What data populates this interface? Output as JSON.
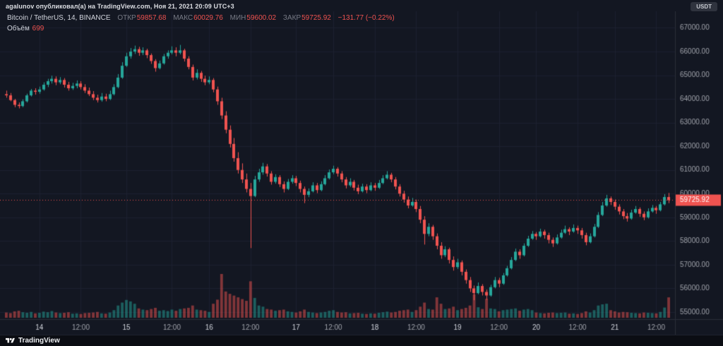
{
  "attribution": {
    "text": "agalunov опубликовал(а) на TradingView.com, Ноя 21, 2021 20:09 UTC+3",
    "quote_badge": "USDT"
  },
  "legend": {
    "symbol": "Bitcoin / TetherUS, 14, BINANCE",
    "o": {
      "label": "ОТКР",
      "value": "59857.68"
    },
    "h": {
      "label": "МАКС",
      "value": "60029.76"
    },
    "l": {
      "label": "МИН",
      "value": "59600.02"
    },
    "c": {
      "label": "ЗАКР",
      "value": "59725.92"
    },
    "change": "−131.77 (−0.22%)",
    "volume": {
      "label": "Объём",
      "value": "699"
    }
  },
  "footer": {
    "brand": "TradingView"
  },
  "chart_data": {
    "type": "candlestick+volume",
    "title": "Bitcoin / TetherUS",
    "exchange": "BINANCE",
    "interval": "14",
    "last_price": 59725.92,
    "last_price_label": "59725.92",
    "price_axis": {
      "min": 55000,
      "max": 67000,
      "step": 1000,
      "render_min": 54700,
      "render_max": 67700,
      "labels": [
        "55000.00",
        "56000.00",
        "57000.00",
        "58000.00",
        "59000.00",
        "60000.00",
        "61000.00",
        "62000.00",
        "63000.00",
        "64000.00",
        "65000.00",
        "66000.00",
        "67000.00"
      ]
    },
    "x_ticks": [
      {
        "i": 8,
        "label": "14",
        "major": true
      },
      {
        "i": 18,
        "label": "12:00",
        "major": false
      },
      {
        "i": 29,
        "label": "15",
        "major": true
      },
      {
        "i": 40,
        "label": "12:00",
        "major": false
      },
      {
        "i": 49,
        "label": "16",
        "major": true
      },
      {
        "i": 59,
        "label": "12:00",
        "major": false
      },
      {
        "i": 70,
        "label": "17",
        "major": true
      },
      {
        "i": 79,
        "label": "12:00",
        "major": false
      },
      {
        "i": 89,
        "label": "18",
        "major": true
      },
      {
        "i": 99,
        "label": "12:00",
        "major": false
      },
      {
        "i": 109,
        "label": "19",
        "major": true
      },
      {
        "i": 119,
        "label": "12:00",
        "major": false
      },
      {
        "i": 128,
        "label": "20",
        "major": true
      },
      {
        "i": 138,
        "label": "12:00",
        "major": false
      },
      {
        "i": 147,
        "label": "21",
        "major": true
      },
      {
        "i": 157,
        "label": "12:00",
        "major": false
      }
    ],
    "colors": {
      "bg": "#131722",
      "grid": "#1c2030",
      "up": "#26a69a",
      "down": "#ef5350",
      "vol_up": "rgba(38,166,154,0.5)",
      "vol_down": "rgba(239,83,80,0.5)",
      "axis_text": "#a0a3ab",
      "axis_text_major": "#d1d4dc",
      "axis_border": "#2a2e39",
      "last_price_text": "#ffffff"
    },
    "candles": [
      [
        64200,
        64350,
        64050,
        64150,
        180
      ],
      [
        64150,
        64250,
        63900,
        63950,
        160
      ],
      [
        63950,
        64000,
        63650,
        63750,
        220
      ],
      [
        63750,
        63850,
        63600,
        63700,
        240
      ],
      [
        63700,
        63980,
        63650,
        63900,
        190
      ],
      [
        63900,
        64220,
        63850,
        64150,
        170
      ],
      [
        64150,
        64420,
        64100,
        64350,
        200
      ],
      [
        64350,
        64450,
        64180,
        64300,
        150
      ],
      [
        64300,
        64520,
        64220,
        64400,
        170
      ],
      [
        64400,
        64700,
        64350,
        64600,
        210
      ],
      [
        64600,
        64850,
        64500,
        64750,
        190
      ],
      [
        64750,
        64980,
        64650,
        64850,
        230
      ],
      [
        64850,
        64950,
        64580,
        64700,
        180
      ],
      [
        64700,
        64920,
        64620,
        64800,
        160
      ],
      [
        64800,
        64880,
        64480,
        64600,
        170
      ],
      [
        64600,
        64720,
        64350,
        64450,
        190
      ],
      [
        64450,
        64680,
        64380,
        64550,
        140
      ],
      [
        64550,
        64780,
        64450,
        64650,
        150
      ],
      [
        64650,
        64750,
        64400,
        64500,
        130
      ],
      [
        64500,
        64620,
        64250,
        64350,
        160
      ],
      [
        64350,
        64480,
        64120,
        64200,
        170
      ],
      [
        64200,
        64330,
        63950,
        64050,
        180
      ],
      [
        64050,
        64180,
        63850,
        63950,
        200
      ],
      [
        63950,
        64250,
        63880,
        64100,
        150
      ],
      [
        64100,
        64220,
        63900,
        64000,
        140
      ],
      [
        64000,
        64350,
        63950,
        64200,
        180
      ],
      [
        64200,
        64620,
        64150,
        64500,
        260
      ],
      [
        64500,
        65050,
        64450,
        64900,
        420
      ],
      [
        64900,
        65550,
        64850,
        65400,
        520
      ],
      [
        65400,
        65950,
        65350,
        65800,
        610
      ],
      [
        65800,
        66150,
        65700,
        66000,
        560
      ],
      [
        66000,
        66250,
        65900,
        66100,
        480
      ],
      [
        66100,
        66200,
        65820,
        65950,
        320
      ],
      [
        65950,
        66180,
        65850,
        66050,
        280
      ],
      [
        66050,
        66120,
        65720,
        65850,
        260
      ],
      [
        65850,
        65920,
        65480,
        65600,
        300
      ],
      [
        65600,
        65680,
        65150,
        65300,
        340
      ],
      [
        65300,
        65620,
        65250,
        65500,
        240
      ],
      [
        65500,
        65900,
        65450,
        65800,
        260
      ],
      [
        65800,
        66050,
        65700,
        65950,
        230
      ],
      [
        65950,
        66220,
        65880,
        66050,
        280
      ],
      [
        66050,
        66180,
        65800,
        65950,
        240
      ],
      [
        65950,
        66280,
        65880,
        66050,
        300
      ],
      [
        66050,
        66120,
        65580,
        65700,
        320
      ],
      [
        65700,
        65800,
        65250,
        65350,
        340
      ],
      [
        65350,
        65450,
        64780,
        64900,
        420
      ],
      [
        64900,
        65250,
        64820,
        65100,
        280
      ],
      [
        65100,
        65180,
        64720,
        64850,
        260
      ],
      [
        64850,
        64980,
        64580,
        64700,
        240
      ],
      [
        64700,
        64950,
        64620,
        64800,
        200
      ],
      [
        64800,
        64880,
        64280,
        64400,
        480
      ],
      [
        64400,
        64520,
        63750,
        63900,
        620
      ],
      [
        63900,
        64050,
        63150,
        63300,
        1500
      ],
      [
        63300,
        63480,
        62550,
        62700,
        900
      ],
      [
        62700,
        62880,
        61950,
        62100,
        820
      ],
      [
        62100,
        62350,
        61350,
        61500,
        760
      ],
      [
        61500,
        61750,
        60850,
        61000,
        700
      ],
      [
        61000,
        61280,
        60450,
        60600,
        640
      ],
      [
        60600,
        60850,
        60050,
        60200,
        580
      ],
      [
        60200,
        60450,
        57700,
        59900,
        1250
      ],
      [
        59900,
        60750,
        59850,
        60600,
        680
      ],
      [
        60600,
        61050,
        60500,
        60900,
        420
      ],
      [
        60900,
        61300,
        60800,
        61150,
        380
      ],
      [
        61150,
        61250,
        60720,
        60850,
        300
      ],
      [
        60850,
        60950,
        60380,
        60500,
        280
      ],
      [
        60500,
        60820,
        60420,
        60700,
        240
      ],
      [
        60700,
        60780,
        60280,
        60400,
        260
      ],
      [
        60400,
        60520,
        60050,
        60200,
        280
      ],
      [
        60200,
        60620,
        60150,
        60500,
        220
      ],
      [
        60500,
        60780,
        60420,
        60650,
        200
      ],
      [
        60650,
        60750,
        60320,
        60450,
        180
      ],
      [
        60450,
        60550,
        60050,
        60200,
        220
      ],
      [
        60200,
        60300,
        59600,
        59950,
        280
      ],
      [
        59950,
        60220,
        59850,
        60100,
        200
      ],
      [
        60100,
        60480,
        60050,
        60350,
        180
      ],
      [
        60350,
        60450,
        60020,
        60150,
        160
      ],
      [
        60150,
        60520,
        60100,
        60400,
        180
      ],
      [
        60400,
        60780,
        60350,
        60650,
        200
      ],
      [
        60650,
        61020,
        60600,
        60900,
        240
      ],
      [
        60900,
        61180,
        60820,
        61050,
        260
      ],
      [
        61050,
        61120,
        60720,
        60850,
        200
      ],
      [
        60850,
        60950,
        60480,
        60600,
        180
      ],
      [
        60600,
        60700,
        60220,
        60350,
        190
      ],
      [
        60350,
        60650,
        60280,
        60500,
        150
      ],
      [
        60500,
        60580,
        60130,
        60250,
        160
      ],
      [
        60250,
        60380,
        59980,
        60100,
        170
      ],
      [
        60100,
        60420,
        60050,
        60300,
        140
      ],
      [
        60300,
        60400,
        60020,
        60150,
        130
      ],
      [
        60150,
        60480,
        60100,
        60350,
        150
      ],
      [
        60350,
        60450,
        60120,
        60250,
        140
      ],
      [
        60250,
        60580,
        60200,
        60450,
        170
      ],
      [
        60450,
        60780,
        60400,
        60650,
        190
      ],
      [
        60650,
        60950,
        60600,
        60800,
        210
      ],
      [
        60800,
        60880,
        60480,
        60600,
        180
      ],
      [
        60600,
        60700,
        60180,
        60300,
        200
      ],
      [
        60300,
        60400,
        59880,
        60000,
        240
      ],
      [
        60000,
        60120,
        59620,
        59750,
        260
      ],
      [
        59750,
        59880,
        59380,
        59500,
        280
      ],
      [
        59500,
        59820,
        59450,
        59650,
        200
      ],
      [
        59650,
        59750,
        59220,
        59350,
        260
      ],
      [
        59350,
        59480,
        58750,
        58900,
        380
      ],
      [
        58900,
        59050,
        57850,
        58300,
        520
      ],
      [
        58300,
        58750,
        58200,
        58600,
        300
      ],
      [
        58600,
        58680,
        58050,
        58200,
        280
      ],
      [
        58200,
        58320,
        57650,
        57800,
        700
      ],
      [
        57800,
        57950,
        57250,
        57400,
        480
      ],
      [
        57400,
        57780,
        57320,
        57650,
        300
      ],
      [
        57650,
        57720,
        57050,
        57200,
        320
      ],
      [
        57200,
        57350,
        56750,
        56900,
        380
      ],
      [
        56900,
        57250,
        56820,
        57100,
        260
      ],
      [
        57100,
        57180,
        56550,
        56700,
        300
      ],
      [
        56700,
        56800,
        56200,
        56350,
        340
      ],
      [
        56350,
        56480,
        55850,
        56000,
        420
      ],
      [
        56000,
        56120,
        55500,
        55800,
        800
      ],
      [
        55800,
        56250,
        55750,
        56100,
        360
      ],
      [
        56100,
        56180,
        55700,
        55850,
        300
      ],
      [
        55850,
        55950,
        55520,
        55700,
        650
      ],
      [
        55700,
        56150,
        55650,
        56050,
        320
      ],
      [
        56050,
        56480,
        56000,
        56350,
        300
      ],
      [
        56350,
        56450,
        56050,
        56200,
        220
      ],
      [
        56200,
        56650,
        56150,
        56550,
        260
      ],
      [
        56550,
        56950,
        56500,
        56850,
        280
      ],
      [
        56850,
        57320,
        56800,
        57200,
        300
      ],
      [
        57200,
        57680,
        57150,
        57550,
        320
      ],
      [
        57550,
        57650,
        57250,
        57400,
        240
      ],
      [
        57400,
        57900,
        57350,
        57800,
        280
      ],
      [
        57800,
        58220,
        57750,
        58100,
        300
      ],
      [
        58100,
        58420,
        58050,
        58300,
        260
      ],
      [
        58300,
        58380,
        58050,
        58200,
        180
      ],
      [
        58200,
        58520,
        58150,
        58400,
        160
      ],
      [
        58400,
        58480,
        58100,
        58250,
        150
      ],
      [
        58250,
        58350,
        57900,
        58050,
        170
      ],
      [
        58050,
        58150,
        57750,
        57900,
        180
      ],
      [
        57900,
        58280,
        57850,
        58150,
        160
      ],
      [
        58150,
        58480,
        58100,
        58350,
        170
      ],
      [
        58350,
        58650,
        58300,
        58500,
        180
      ],
      [
        58500,
        58580,
        58250,
        58400,
        140
      ],
      [
        58400,
        58700,
        58350,
        58550,
        150
      ],
      [
        58550,
        58650,
        58300,
        58450,
        130
      ],
      [
        58450,
        58550,
        58100,
        58250,
        160
      ],
      [
        58250,
        58350,
        57820,
        57950,
        220
      ],
      [
        57950,
        58320,
        57900,
        58200,
        180
      ],
      [
        58200,
        58720,
        58150,
        58600,
        260
      ],
      [
        58600,
        59220,
        58550,
        59100,
        420
      ],
      [
        59100,
        59650,
        59050,
        59500,
        460
      ],
      [
        59500,
        59950,
        59450,
        59800,
        480
      ],
      [
        59800,
        59880,
        59520,
        59650,
        260
      ],
      [
        59650,
        59750,
        59320,
        59450,
        220
      ],
      [
        59450,
        59550,
        59120,
        59250,
        180
      ],
      [
        59250,
        59350,
        58920,
        59050,
        200
      ],
      [
        59050,
        59180,
        58820,
        58950,
        190
      ],
      [
        58950,
        59320,
        58900,
        59200,
        170
      ],
      [
        59200,
        59480,
        59150,
        59350,
        160
      ],
      [
        59350,
        59420,
        59020,
        59150,
        150
      ],
      [
        59150,
        59250,
        58880,
        59000,
        180
      ],
      [
        59000,
        59380,
        58950,
        59250,
        170
      ],
      [
        59250,
        59520,
        59200,
        59400,
        160
      ],
      [
        59400,
        59480,
        59150,
        59300,
        150
      ],
      [
        59300,
        59650,
        59250,
        59550,
        200
      ],
      [
        59550,
        59980,
        59500,
        59857.68,
        350
      ],
      [
        59857.68,
        60029.76,
        59600.02,
        59725.92,
        699
      ]
    ]
  }
}
